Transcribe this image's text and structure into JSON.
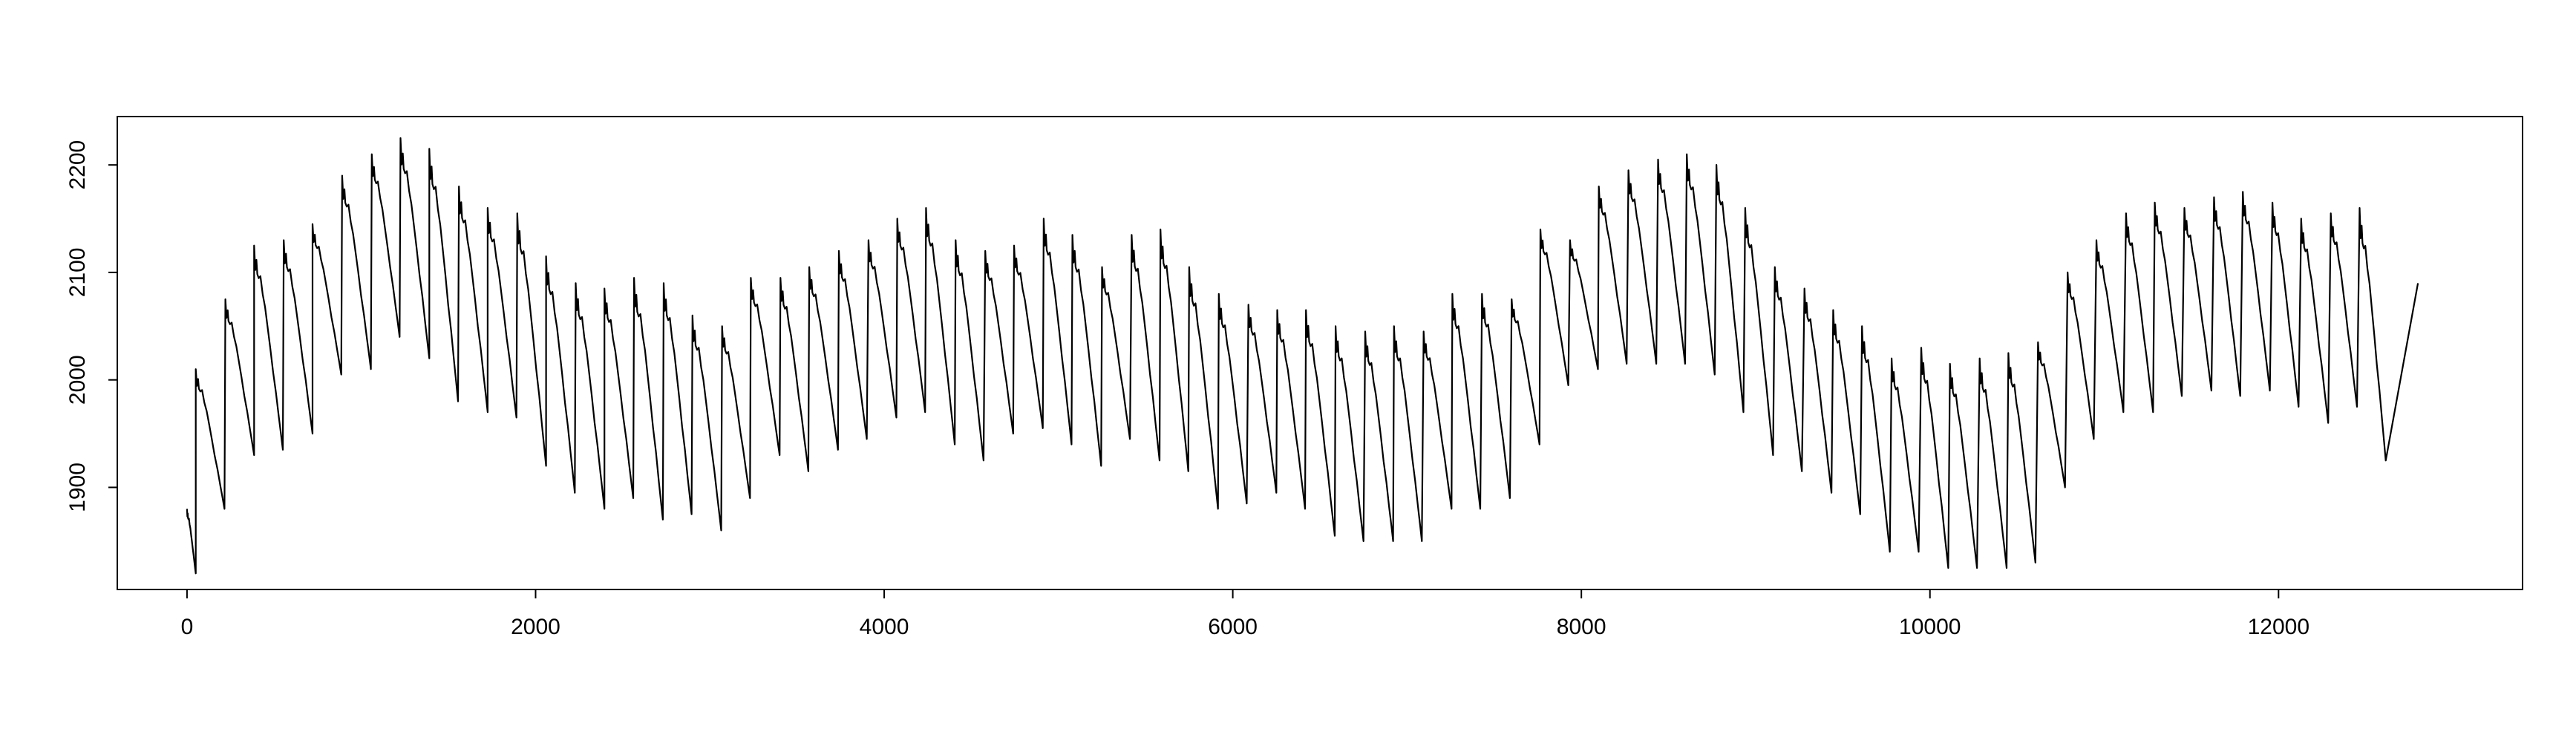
{
  "chart_data": {
    "type": "line",
    "title": "",
    "xlabel": "",
    "ylabel": "",
    "xlim": [
      -400,
      13400
    ],
    "ylim": [
      1805,
      2245
    ],
    "grid": false,
    "x_ticks": [
      0,
      2000,
      4000,
      6000,
      8000,
      10000,
      12000
    ],
    "x_tick_labels": [
      "0",
      "2000",
      "4000",
      "6000",
      "8000",
      "10000",
      "12000"
    ],
    "y_ticks": [
      1900,
      2000,
      2100,
      2200
    ],
    "y_tick_labels": [
      "1900",
      "2000",
      "2100",
      "2200"
    ],
    "cycle_length": 168,
    "series": [
      {
        "line_color": "#000000",
        "x_start": 0,
        "x_end": 12800,
        "cycle_peaks": [
          [
            0,
            1880
          ],
          [
            50,
            2010
          ],
          [
            220,
            2075
          ],
          [
            385,
            2125
          ],
          [
            555,
            2130
          ],
          [
            720,
            2145
          ],
          [
            890,
            2190
          ],
          [
            1060,
            2210
          ],
          [
            1225,
            2225
          ],
          [
            1390,
            2215
          ],
          [
            1560,
            2180
          ],
          [
            1725,
            2160
          ],
          [
            1895,
            2155
          ],
          [
            2060,
            2115
          ],
          [
            2230,
            2090
          ],
          [
            2395,
            2085
          ],
          [
            2565,
            2095
          ],
          [
            2735,
            2090
          ],
          [
            2900,
            2060
          ],
          [
            3070,
            2050
          ],
          [
            3235,
            2095
          ],
          [
            3405,
            2095
          ],
          [
            3570,
            2105
          ],
          [
            3740,
            2120
          ],
          [
            3910,
            2130
          ],
          [
            4075,
            2150
          ],
          [
            4240,
            2160
          ],
          [
            4410,
            2130
          ],
          [
            4580,
            2120
          ],
          [
            4745,
            2125
          ],
          [
            4915,
            2150
          ],
          [
            5080,
            2135
          ],
          [
            5250,
            2105
          ],
          [
            5420,
            2135
          ],
          [
            5585,
            2140
          ],
          [
            5750,
            2105
          ],
          [
            5920,
            2080
          ],
          [
            6090,
            2070
          ],
          [
            6255,
            2065
          ],
          [
            6420,
            2065
          ],
          [
            6590,
            2050
          ],
          [
            6760,
            2045
          ],
          [
            6925,
            2050
          ],
          [
            7095,
            2045
          ],
          [
            7260,
            2080
          ],
          [
            7430,
            2080
          ],
          [
            7600,
            2075
          ],
          [
            7765,
            2140
          ],
          [
            7935,
            2130
          ],
          [
            8100,
            2180
          ],
          [
            8270,
            2195
          ],
          [
            8440,
            2205
          ],
          [
            8605,
            2210
          ],
          [
            8775,
            2200
          ],
          [
            8940,
            2160
          ],
          [
            9110,
            2105
          ],
          [
            9280,
            2085
          ],
          [
            9445,
            2065
          ],
          [
            9610,
            2050
          ],
          [
            9780,
            2020
          ],
          [
            9950,
            2030
          ],
          [
            10115,
            2015
          ],
          [
            10285,
            2020
          ],
          [
            10450,
            2025
          ],
          [
            10620,
            2035
          ],
          [
            10790,
            2100
          ],
          [
            10955,
            2130
          ],
          [
            11125,
            2155
          ],
          [
            11290,
            2165
          ],
          [
            11460,
            2160
          ],
          [
            11630,
            2170
          ],
          [
            11795,
            2175
          ],
          [
            11965,
            2165
          ],
          [
            12130,
            2150
          ],
          [
            12300,
            2155
          ],
          [
            12465,
            2160
          ],
          [
            12640,
            2120
          ],
          [
            12800,
            2090
          ]
        ],
        "cycle_troughs": [
          [
            50,
            1820
          ],
          [
            215,
            1880
          ],
          [
            385,
            1930
          ],
          [
            550,
            1935
          ],
          [
            720,
            1950
          ],
          [
            885,
            2005
          ],
          [
            1055,
            2010
          ],
          [
            1220,
            2040
          ],
          [
            1390,
            2020
          ],
          [
            1555,
            1980
          ],
          [
            1725,
            1970
          ],
          [
            1890,
            1965
          ],
          [
            2060,
            1920
          ],
          [
            2225,
            1895
          ],
          [
            2395,
            1880
          ],
          [
            2560,
            1890
          ],
          [
            2730,
            1870
          ],
          [
            2895,
            1875
          ],
          [
            3065,
            1860
          ],
          [
            3230,
            1890
          ],
          [
            3400,
            1930
          ],
          [
            3565,
            1915
          ],
          [
            3735,
            1935
          ],
          [
            3900,
            1945
          ],
          [
            4070,
            1965
          ],
          [
            4235,
            1970
          ],
          [
            4405,
            1940
          ],
          [
            4570,
            1925
          ],
          [
            4740,
            1950
          ],
          [
            4910,
            1955
          ],
          [
            5075,
            1940
          ],
          [
            5245,
            1920
          ],
          [
            5410,
            1945
          ],
          [
            5580,
            1925
          ],
          [
            5745,
            1915
          ],
          [
            5915,
            1880
          ],
          [
            6080,
            1885
          ],
          [
            6250,
            1895
          ],
          [
            6415,
            1880
          ],
          [
            6585,
            1855
          ],
          [
            6750,
            1850
          ],
          [
            6920,
            1850
          ],
          [
            7085,
            1850
          ],
          [
            7255,
            1880
          ],
          [
            7420,
            1880
          ],
          [
            7590,
            1890
          ],
          [
            7760,
            1940
          ],
          [
            7925,
            1995
          ],
          [
            8095,
            2010
          ],
          [
            8260,
            2015
          ],
          [
            8430,
            2015
          ],
          [
            8595,
            2015
          ],
          [
            8765,
            2005
          ],
          [
            8930,
            1970
          ],
          [
            9100,
            1930
          ],
          [
            9265,
            1915
          ],
          [
            9435,
            1895
          ],
          [
            9600,
            1875
          ],
          [
            9770,
            1840
          ],
          [
            9935,
            1840
          ],
          [
            10105,
            1825
          ],
          [
            10270,
            1825
          ],
          [
            10440,
            1825
          ],
          [
            10605,
            1830
          ],
          [
            10775,
            1900
          ],
          [
            10940,
            1945
          ],
          [
            11110,
            1970
          ],
          [
            11280,
            1970
          ],
          [
            11445,
            1985
          ],
          [
            11615,
            1990
          ],
          [
            11780,
            1985
          ],
          [
            11950,
            1990
          ],
          [
            12115,
            1975
          ],
          [
            12285,
            1960
          ],
          [
            12450,
            1975
          ],
          [
            12615,
            1925
          ]
        ]
      }
    ]
  }
}
